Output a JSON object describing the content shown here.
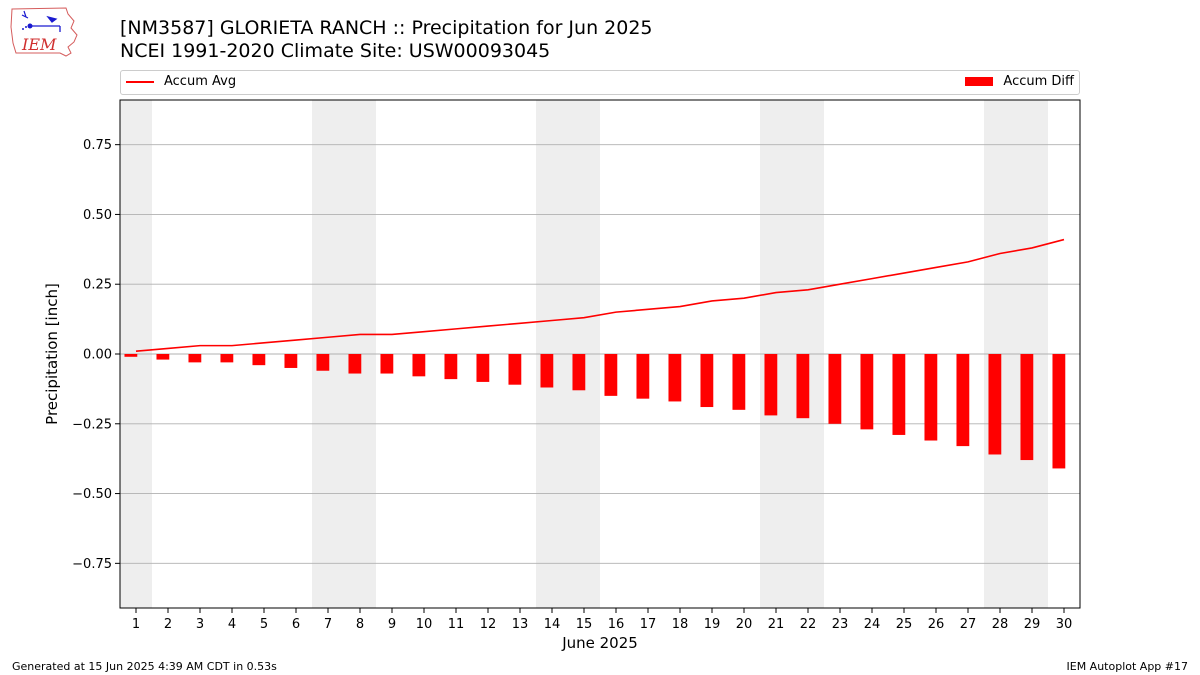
{
  "header": {
    "title_line1": "[NM3587] GLORIETA RANCH :: Precipitation for Jun 2025",
    "title_line2": "NCEI 1991-2020 Climate Site: USW00093045"
  },
  "logo": {
    "text": "IEM"
  },
  "footer": {
    "left": "Generated at 15 Jun 2025 4:39 AM CDT in 0.53s",
    "right": "IEM Autoplot App #17"
  },
  "colors": {
    "series": "#ff0000",
    "weekend_band": "#eeeeee",
    "grid": "#b0b0b0"
  },
  "chart_data": {
    "type": "bar",
    "xlabel": "June 2025",
    "ylabel": "Precipitation [inch]",
    "ylim": [
      -0.91,
      0.91
    ],
    "xlim": [
      0.5,
      30.5
    ],
    "yticks": [
      -0.75,
      -0.5,
      -0.25,
      0.0,
      0.25,
      0.5,
      0.75
    ],
    "ytick_labels": [
      "−0.75",
      "−0.50",
      "−0.25",
      "0.00",
      "0.25",
      "0.50",
      "0.75"
    ],
    "categories": [
      "1",
      "2",
      "3",
      "4",
      "5",
      "6",
      "7",
      "8",
      "9",
      "10",
      "11",
      "12",
      "13",
      "14",
      "15",
      "16",
      "17",
      "18",
      "19",
      "20",
      "21",
      "22",
      "23",
      "24",
      "25",
      "26",
      "27",
      "28",
      "29",
      "30"
    ],
    "legend": {
      "line_label": "Accum Avg",
      "bar_label": "Accum Diff"
    },
    "weekend_days": [
      1,
      7,
      8,
      14,
      15,
      21,
      22,
      28,
      29
    ],
    "grid": true,
    "series": [
      {
        "name": "Accum Avg",
        "type": "line",
        "values": [
          0.01,
          0.02,
          0.03,
          0.03,
          0.04,
          0.05,
          0.06,
          0.07,
          0.07,
          0.08,
          0.09,
          0.1,
          0.11,
          0.12,
          0.13,
          0.15,
          0.16,
          0.17,
          0.19,
          0.2,
          0.22,
          0.23,
          0.25,
          0.27,
          0.29,
          0.31,
          0.33,
          0.36,
          0.38,
          0.41
        ]
      },
      {
        "name": "Accum Diff",
        "type": "bar",
        "values": [
          -0.01,
          -0.02,
          -0.03,
          -0.03,
          -0.04,
          -0.05,
          -0.06,
          -0.07,
          -0.07,
          -0.08,
          -0.09,
          -0.1,
          -0.11,
          -0.12,
          -0.13,
          -0.15,
          -0.16,
          -0.17,
          -0.19,
          -0.2,
          -0.22,
          -0.23,
          -0.25,
          -0.27,
          -0.29,
          -0.31,
          -0.33,
          -0.36,
          -0.38,
          -0.41
        ]
      }
    ]
  }
}
